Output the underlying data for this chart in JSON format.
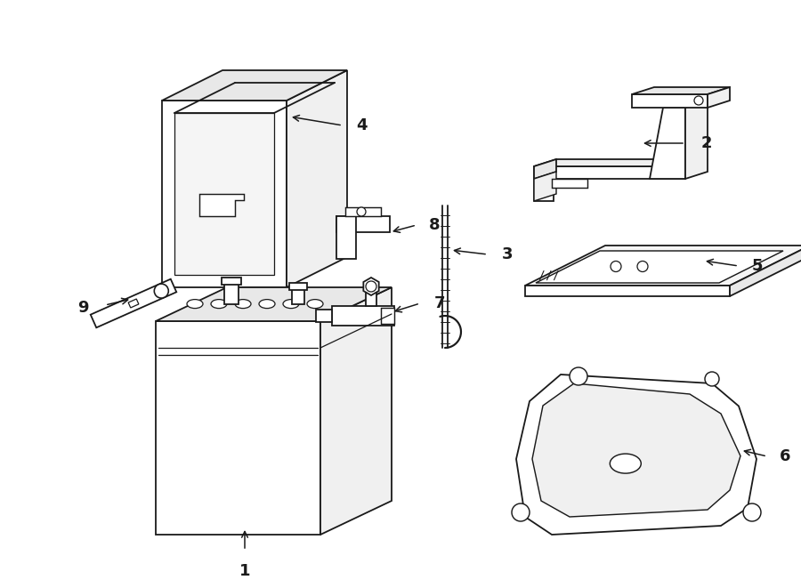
{
  "background_color": "#ffffff",
  "line_color": "#1a1a1a",
  "line_width": 1.3,
  "fig_width": 9.0,
  "fig_height": 6.61
}
